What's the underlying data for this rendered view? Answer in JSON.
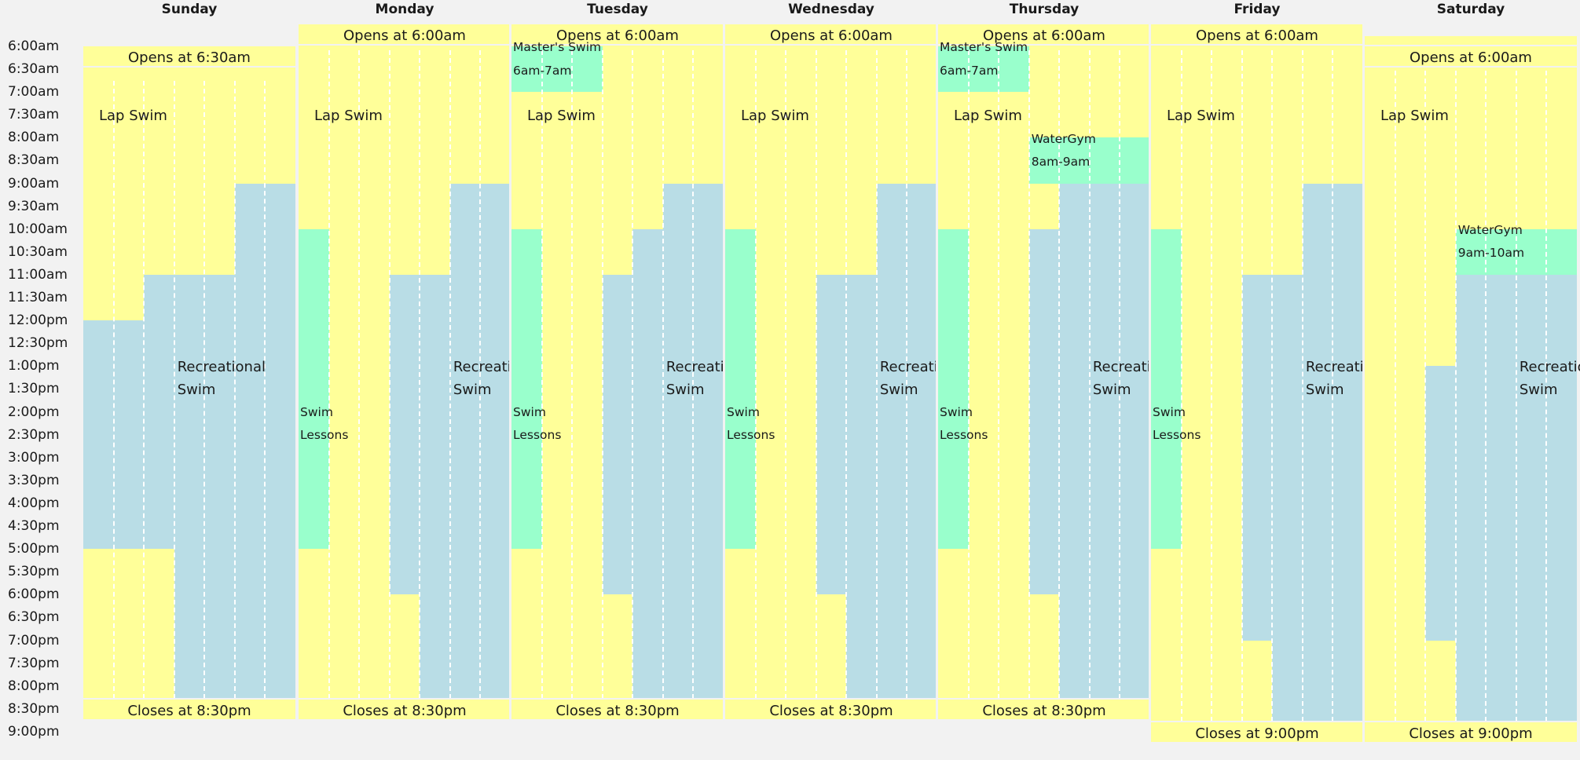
{
  "days": [
    {
      "name": "Sunday",
      "opens": "Opens at 6:30am",
      "closes": "Closes at 8:30pm",
      "lap_label": "Lap Swim",
      "rec_label": [
        "Recreational",
        "Swim"
      ]
    },
    {
      "name": "Monday",
      "opens": "Opens at 6:00am",
      "closes": "Closes at 8:30pm",
      "lap_label": "Lap Swim",
      "rec_label": [
        "Recreational",
        "Swim"
      ],
      "lessons_label": [
        "Swim",
        "Lessons"
      ]
    },
    {
      "name": "Tuesday",
      "opens": "Opens at 6:00am",
      "closes": "Closes at 8:30pm",
      "lap_label": "Lap Swim",
      "rec_label": [
        "Recreational",
        "Swim"
      ],
      "lessons_label": [
        "Swim",
        "Lessons"
      ],
      "special": {
        "title": "Master's Swim",
        "time": "6am-7am"
      }
    },
    {
      "name": "Wednesday",
      "opens": "Opens at 6:00am",
      "closes": "Closes at 8:30pm",
      "lap_label": "Lap Swim",
      "rec_label": [
        "Recreational",
        "Swim"
      ],
      "lessons_label": [
        "Swim",
        "Lessons"
      ]
    },
    {
      "name": "Thursday",
      "opens": "Opens at 6:00am",
      "closes": "Closes at 8:30pm",
      "lap_label": "Lap Swim",
      "rec_label": [
        "Recreational",
        "Swim"
      ],
      "lessons_label": [
        "Swim",
        "Lessons"
      ],
      "special": {
        "title": "Master's Swim",
        "time": "6am-7am"
      },
      "special2": {
        "title": "WaterGym",
        "time": "8am-9am"
      }
    },
    {
      "name": "Friday",
      "opens": "Opens at 6:00am",
      "closes": "Closes at 9:00pm",
      "lap_label": "Lap Swim",
      "rec_label": [
        "Recreational",
        "Swim"
      ],
      "lessons_label": [
        "Swim",
        "Lessons"
      ]
    },
    {
      "name": "Saturday",
      "opens": "Opens at 6:00am",
      "closes": "Closes at 9:00pm",
      "lap_label": "Lap Swim",
      "rec_label": [
        "Recreational",
        "Swim"
      ],
      "special2": {
        "title": "WaterGym",
        "time": "9am-10am"
      }
    }
  ],
  "times": [
    "6:00am",
    "6:30am",
    "7:00am",
    "7:30am",
    "8:00am",
    "8:30am",
    "9:00am",
    "9:30am",
    "10:00am",
    "10:30am",
    "11:00am",
    "11:30am",
    "12:00pm",
    "12:30pm",
    "1:00pm",
    "1:30pm",
    "2:00pm",
    "2:30pm",
    "3:00pm",
    "3:30pm",
    "4:00pm",
    "4:30pm",
    "5:00pm",
    "5:30pm",
    "6:00pm",
    "6:30pm",
    "7:00pm",
    "7:30pm",
    "8:00pm",
    "8:30pm",
    "9:00pm"
  ],
  "colors": {
    "lap": "#ffff99",
    "recreational": "#b9dde6",
    "lessons": "#99ffcc",
    "background": "#f2f2f2"
  }
}
